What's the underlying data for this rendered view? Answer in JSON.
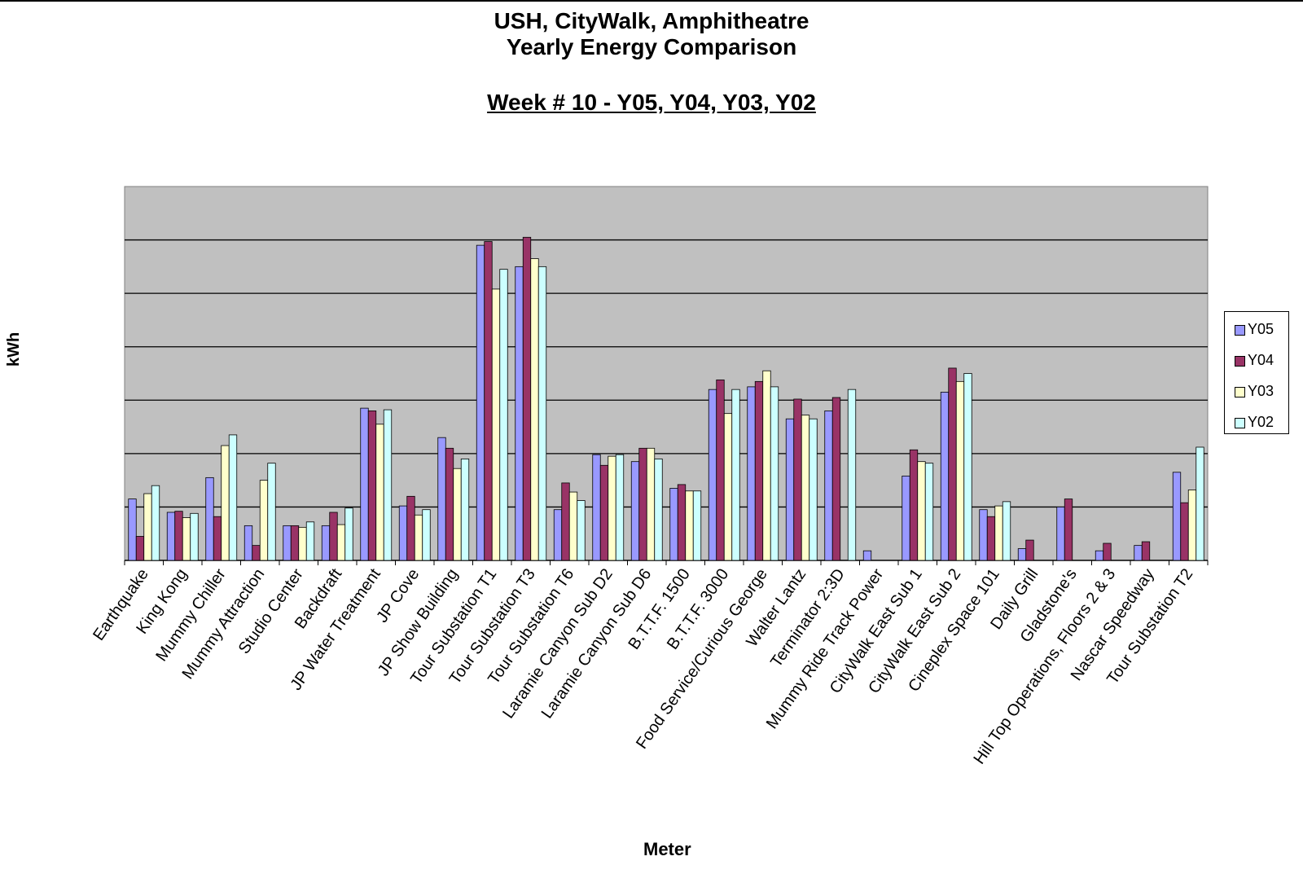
{
  "chart_data": {
    "type": "bar",
    "title": "USH, CityWalk, Amphitheatre",
    "title2": "Yearly Energy Comparison",
    "subtitle": "Week # 10 - Y05, Y04, Y03, Y02",
    "xlabel": "Meter",
    "ylabel": "kWh",
    "ylim": [
      0,
      7
    ],
    "grid": true,
    "legend_position": "right",
    "colors": {
      "Y05": "#9999ff",
      "Y04": "#993366",
      "Y03": "#ffffcc",
      "Y02": "#ccffff",
      "plot_bg": "#c0c0c0"
    },
    "categories": [
      "Earthquake",
      "King Kong",
      "Mummy Chiller",
      "Mummy Attraction",
      "Studio Center",
      "Backdraft",
      "JP Water Treatment",
      "JP Cove",
      "JP Show Building",
      "Tour Substation T1",
      "Tour Substation T3",
      "Tour Substation T6",
      "Laramie Canyon Sub D2",
      "Laramie Canyon Sub D6",
      "B.T.T.F. 1500",
      "B.T.T.F. 3000",
      "Food Service/Curious George",
      "Walter Lantz",
      "Terminator 2:3D",
      "Mummy Ride Track Power",
      "CityWalk East Sub 1",
      "CityWalk East Sub 2",
      "Cineplex Space 101",
      "Daily Grill",
      "Gladstone's",
      "Hill Top Operations, Floors 2 & 3",
      "Nascar Speedway",
      "Tour Substation T2"
    ],
    "series": [
      {
        "name": "Y05",
        "values": [
          1.15,
          0.9,
          1.55,
          0.65,
          0.65,
          0.65,
          2.85,
          1.02,
          2.3,
          5.9,
          5.5,
          0.95,
          1.98,
          1.85,
          1.35,
          3.2,
          3.25,
          2.65,
          2.8,
          0.18,
          1.58,
          3.15,
          0.95,
          0.22,
          1.0,
          0.18,
          0.28,
          1.65
        ]
      },
      {
        "name": "Y04",
        "values": [
          0.45,
          0.92,
          0.82,
          0.28,
          0.65,
          0.9,
          2.8,
          1.2,
          2.1,
          5.97,
          6.05,
          1.45,
          1.78,
          2.1,
          1.42,
          3.38,
          3.35,
          3.02,
          3.05,
          0,
          2.07,
          3.6,
          0.82,
          0.38,
          1.15,
          0.32,
          0.35,
          1.08
        ]
      },
      {
        "name": "Y03",
        "values": [
          1.25,
          0.8,
          2.15,
          1.5,
          0.62,
          0.67,
          2.55,
          0.85,
          1.72,
          5.08,
          5.65,
          1.28,
          1.95,
          2.1,
          1.3,
          2.75,
          3.55,
          2.72,
          0,
          0,
          1.85,
          3.35,
          1.02,
          0,
          0,
          0,
          0,
          1.32
        ]
      },
      {
        "name": "Y02",
        "values": [
          1.4,
          0.88,
          2.35,
          1.82,
          0.72,
          0.98,
          2.82,
          0.95,
          1.9,
          5.45,
          5.5,
          1.12,
          1.98,
          1.9,
          1.3,
          3.2,
          3.25,
          2.65,
          3.2,
          0,
          1.82,
          3.5,
          1.1,
          0,
          0,
          0,
          0,
          2.12
        ]
      }
    ]
  }
}
